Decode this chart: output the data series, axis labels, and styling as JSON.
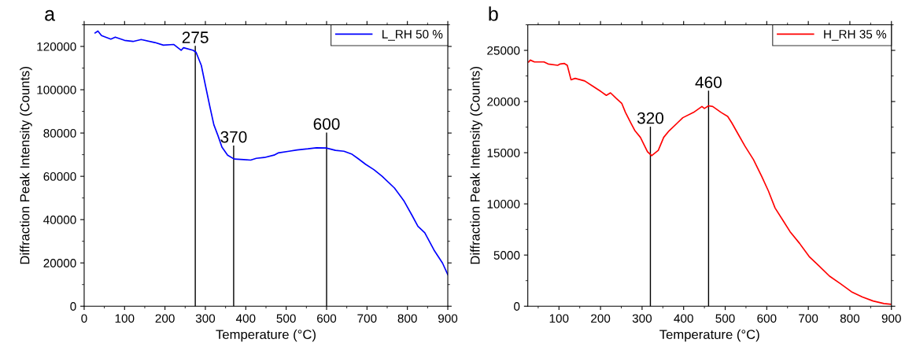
{
  "chart_data": [
    {
      "type": "line",
      "xlabel": "Temperature (°C)",
      "ylabel": "Diffraction Peak Intensity (Counts)",
      "xlim": [
        0,
        900
      ],
      "xticks": [
        0,
        100,
        200,
        300,
        400,
        500,
        600,
        700,
        800,
        900
      ],
      "ylim": [
        0,
        130000
      ],
      "yticks": [
        0,
        20000,
        40000,
        60000,
        80000,
        100000,
        120000
      ],
      "grid": false,
      "legend": "top right",
      "marker": "none",
      "line_style": "solid",
      "annotations": [
        "a",
        {
          "text": "275",
          "x": 275,
          "y": 120000
        },
        {
          "text": "370",
          "x": 370,
          "y": 74000
        },
        {
          "text": "600",
          "x": 600,
          "y": 80000
        }
      ],
      "series": [
        {
          "color": "#000000",
          "x": [
            275,
            275
          ],
          "values": [
            0,
            120000
          ]
        },
        {
          "color": "#000000",
          "x": [
            370,
            370
          ],
          "values": [
            0,
            74000
          ]
        },
        {
          "color": "#000000",
          "x": [
            600,
            600
          ],
          "values": [
            0,
            80000
          ]
        },
        {
          "name": "L_RH 50 %",
          "color": "#0000ff",
          "x": [
            27,
            34,
            43,
            66,
            77,
            100,
            121,
            141,
            175,
            196,
            222,
            240,
            246,
            270,
            277,
            290,
            300,
            311,
            321,
            331,
            341,
            355,
            371,
            395,
            412,
            426,
            446,
            470,
            480,
            507,
            527,
            554,
            575,
            599,
            622,
            643,
            663,
            677,
            697,
            717,
            737,
            768,
            792,
            812,
            826,
            843,
            866,
            887,
            900
          ],
          "values": [
            126200,
            127100,
            125000,
            123400,
            124300,
            122800,
            122300,
            123200,
            121800,
            120600,
            120900,
            118200,
            119400,
            118200,
            117300,
            111200,
            102100,
            92300,
            83800,
            78900,
            73500,
            69800,
            68000,
            67700,
            67500,
            68300,
            68700,
            69800,
            70800,
            71600,
            72200,
            72700,
            73200,
            73100,
            72000,
            71600,
            70200,
            68300,
            65500,
            63100,
            60100,
            54600,
            48500,
            41800,
            36900,
            33900,
            25900,
            19900,
            14600
          ]
        }
      ]
    },
    {
      "type": "line",
      "xlabel": "Temperature (°C)",
      "ylabel": "Diffraction Peak Intensity (Counts)",
      "xlim": [
        25,
        900
      ],
      "xticks": [
        100,
        200,
        300,
        400,
        500,
        600,
        700,
        800,
        900
      ],
      "ylim": [
        0,
        27500
      ],
      "yticks": [
        0,
        5000,
        10000,
        15000,
        20000,
        25000
      ],
      "grid": false,
      "legend": "top right",
      "marker": "none",
      "line_style": "solid",
      "annotations": [
        "b",
        {
          "text": "320",
          "x": 320,
          "y": 17500
        },
        {
          "text": "460",
          "x": 460,
          "y": 21000
        }
      ],
      "series": [
        {
          "color": "#000000",
          "x": [
            320,
            320
          ],
          "values": [
            0,
            17500
          ]
        },
        {
          "color": "#000000",
          "x": [
            460,
            460
          ],
          "values": [
            0,
            21000
          ]
        },
        {
          "name": "H_RH 35 %",
          "color": "#ff0000",
          "x": [
            27,
            31,
            41,
            64,
            74,
            97,
            103,
            113,
            120,
            129,
            139,
            162,
            182,
            201,
            214,
            224,
            237,
            251,
            260,
            273,
            283,
            296,
            313,
            323,
            339,
            352,
            365,
            385,
            398,
            424,
            444,
            450,
            460,
            470,
            490,
            506,
            516,
            532,
            548,
            568,
            588,
            604,
            620,
            640,
            656,
            679,
            702,
            725,
            751,
            778,
            804,
            830,
            856,
            882,
            900
          ],
          "values": [
            23870,
            24050,
            23870,
            23870,
            23670,
            23540,
            23670,
            23720,
            23540,
            22130,
            22260,
            22010,
            21490,
            20980,
            20600,
            20850,
            20340,
            19830,
            18940,
            17910,
            17140,
            16500,
            15100,
            14710,
            15230,
            16500,
            17140,
            17910,
            18420,
            18940,
            19520,
            19320,
            19580,
            19520,
            18940,
            18550,
            17910,
            16760,
            15610,
            14330,
            12670,
            11260,
            9600,
            8320,
            7290,
            6140,
            4860,
            3970,
            2940,
            2180,
            1410,
            900,
            510,
            260,
            180
          ]
        }
      ]
    }
  ]
}
